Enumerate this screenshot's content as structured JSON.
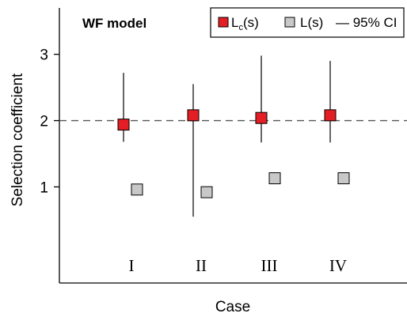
{
  "chart_data": {
    "type": "scatter",
    "title": "WF model",
    "xlabel": "Case",
    "ylabel": "Selection coefficient",
    "categories": [
      "I",
      "II",
      "III",
      "IV"
    ],
    "yticks": [
      1,
      2,
      3
    ],
    "ylim": [
      -0.45,
      3.7
    ],
    "reference_line": {
      "y": 2,
      "style": "dashed"
    },
    "grid": false,
    "legend_position": "top-right",
    "legend": {
      "lc_main": "L",
      "lc_sub": "c",
      "lc_suffix": "(s)",
      "l_label": "L(s)",
      "ci_label": "— 95% CI"
    },
    "series": [
      {
        "name": "Lc(s)",
        "color": "#e31e24",
        "values": [
          1.94,
          2.08,
          2.04,
          2.08
        ],
        "ci_low": [
          1.68,
          0.55,
          1.67,
          1.67
        ],
        "ci_high": [
          2.72,
          2.55,
          2.98,
          2.9
        ]
      },
      {
        "name": "L(s)",
        "color": "#c8c8c8",
        "values": [
          0.96,
          0.92,
          1.13,
          1.13
        ]
      }
    ]
  }
}
